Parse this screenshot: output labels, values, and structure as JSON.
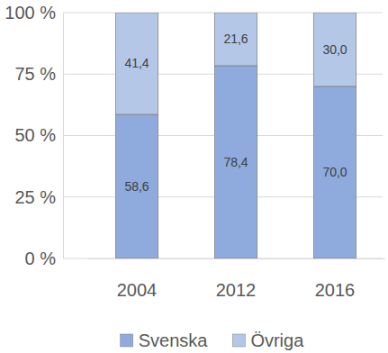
{
  "chart_data": {
    "type": "bar",
    "stacked": true,
    "data_labels": true,
    "grid": true,
    "legend": "bottom",
    "categories": [
      "2004",
      "2012",
      "2016"
    ],
    "series": [
      {
        "name": "Svenska",
        "color": "#8faadc",
        "values": [
          58.6,
          78.4,
          70.0
        ],
        "value_labels": [
          "58,6",
          "78,4",
          "70,0"
        ]
      },
      {
        "name": "Övriga",
        "color": "#b4c7e7",
        "values": [
          41.4,
          21.6,
          30.0
        ],
        "value_labels": [
          "41,4",
          "21,6",
          "30,0"
        ]
      }
    ],
    "ylim": [
      0,
      100
    ],
    "yticks": [
      {
        "value": 0,
        "label": "0 %"
      },
      {
        "value": 25,
        "label": "25 %"
      },
      {
        "value": 50,
        "label": "50 %"
      },
      {
        "value": 75,
        "label": "75 %"
      },
      {
        "value": 100,
        "label": "100 %"
      }
    ]
  }
}
